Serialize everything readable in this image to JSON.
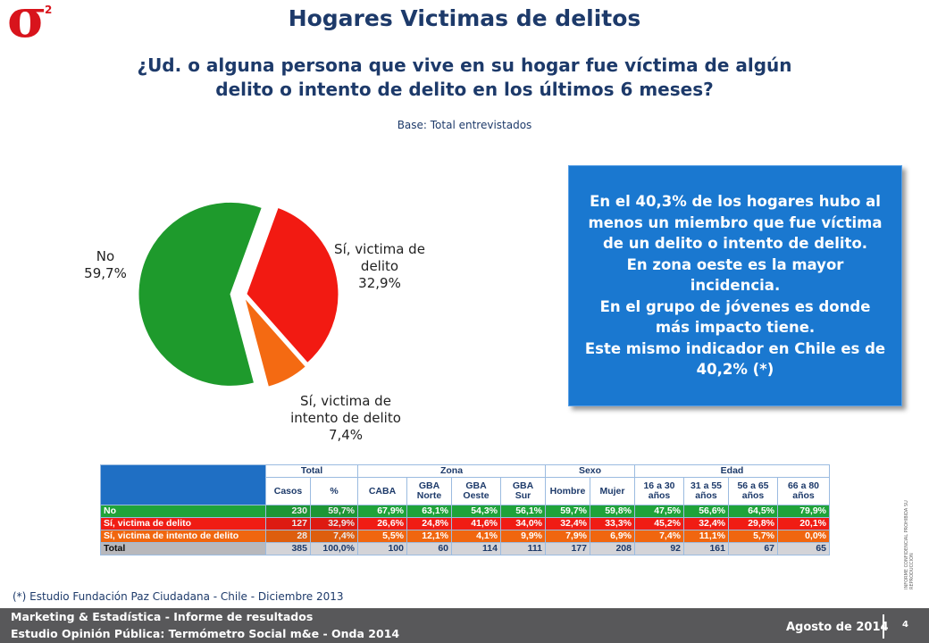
{
  "header": {
    "logo": "σ",
    "logo_sup": "2",
    "title": "Hogares Victimas de delitos",
    "question": "¿Ud. o alguna persona que vive en su hogar fue víctima de algún delito o intento de delito en los últimos 6 meses?",
    "base": "Base: Total entrevistados"
  },
  "chart_data": {
    "type": "pie",
    "categories": [
      "Sí, victima de delito",
      "Sí, victima de intento de delito",
      "No"
    ],
    "values": [
      32.9,
      7.4,
      59.7
    ],
    "value_labels": [
      "32,9%",
      "7,4%",
      "59,7%"
    ],
    "colors": [
      "#f21a12",
      "#f46a12",
      "#1e9a2c"
    ]
  },
  "callout": [
    "En el 40,3% de los hogares hubo al menos un miembro que fue víctima de un delito o intento de delito.",
    "En zona oeste es la mayor incidencia.",
    "En el grupo de jóvenes es donde más impacto tiene.",
    "Este mismo indicador en Chile es de 40,2% (*)"
  ],
  "table": {
    "groups": [
      "Total",
      "Zona",
      "Sexo",
      "Edad"
    ],
    "columns": [
      "Casos",
      "%",
      "CABA",
      "GBA\nNorte",
      "GBA\nOeste",
      "GBA\nSur",
      "Hombre",
      "Mujer",
      "16 a 30\naños",
      "31 a 55\naños",
      "56 a 65\naños",
      "66 a 80\naños"
    ],
    "rows": [
      [
        "No",
        "230",
        "59,7%",
        "67,9%",
        "63,1%",
        "54,3%",
        "56,1%",
        "59,7%",
        "59,8%",
        "47,5%",
        "56,6%",
        "64,5%",
        "79,9%"
      ],
      [
        "Sí, victima de delito",
        "127",
        "32,9%",
        "26,6%",
        "24,8%",
        "41,6%",
        "34,0%",
        "32,4%",
        "33,3%",
        "45,2%",
        "32,4%",
        "29,8%",
        "20,1%"
      ],
      [
        "Sí, victima de intento de delito",
        "28",
        "7,4%",
        "5,5%",
        "12,1%",
        "4,1%",
        "9,9%",
        "7,9%",
        "6,9%",
        "7,4%",
        "11,1%",
        "5,7%",
        "0,0%"
      ],
      [
        "Total",
        "385",
        "100,0%",
        "100",
        "60",
        "114",
        "111",
        "177",
        "208",
        "92",
        "161",
        "67",
        "65"
      ]
    ]
  },
  "note": "(*) Estudio Fundación Paz Ciudadana - Chile - Diciembre 2013",
  "side_note": "INFORME CONFIDENCIAL PROHIBIDA SU REPRODUCCION",
  "footer": {
    "line1": "Marketing & Estadística - Informe de resultados",
    "line2": "Estudio Opinión Pública: Termómetro Social m&e - Onda 2014",
    "date": "Agosto de 2014",
    "page": "4"
  }
}
